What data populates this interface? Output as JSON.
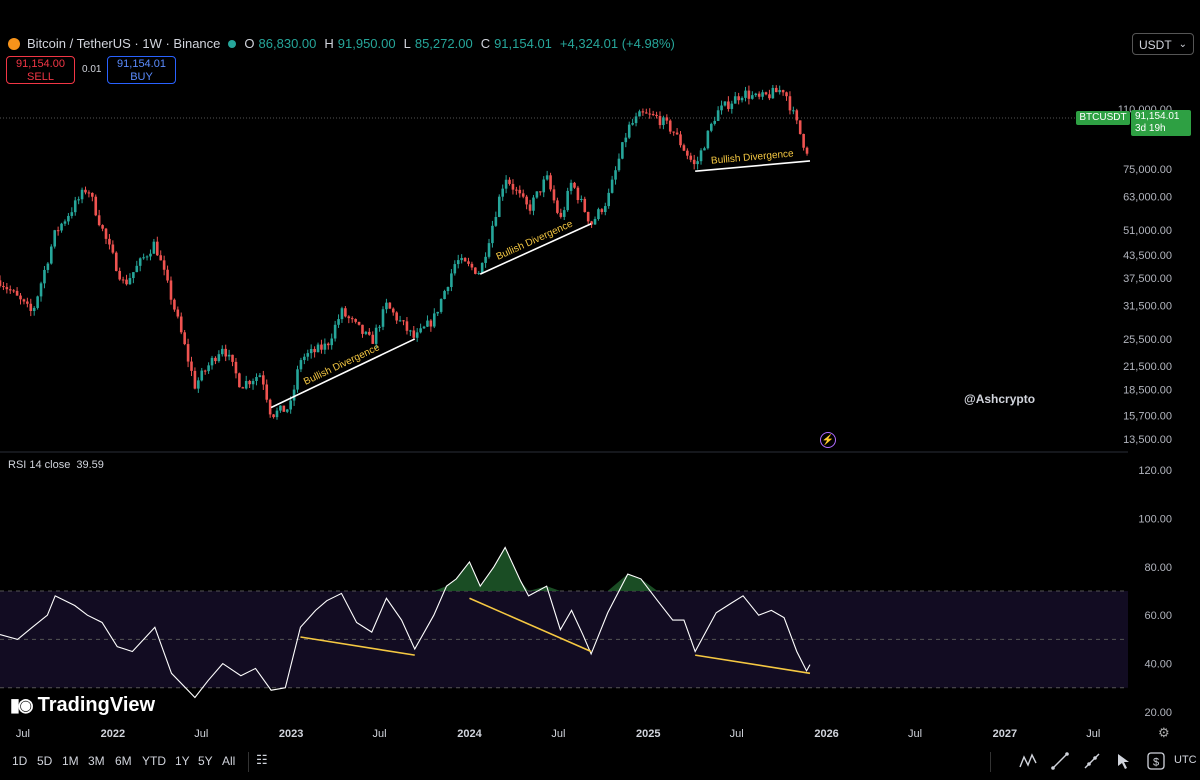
{
  "header": {
    "title": "Bitcoin / TetherUS · 1W · Binance",
    "open_label": "O",
    "open": "86,830.00",
    "high_label": "H",
    "high": "91,950.00",
    "low_label": "L",
    "low": "85,272.00",
    "close_label": "C",
    "close": "91,154.01",
    "change": "+4,324.01 (+4.98%)"
  },
  "trade": {
    "sell_price": "91,154.00",
    "sell_label": "SELL",
    "spread": "0.01",
    "buy_price": "91,154.01",
    "buy_label": "BUY"
  },
  "currency_select": "USDT",
  "price_tag": {
    "symbol": "BTCUSDT",
    "price": "91,154.01",
    "countdown": "3d 19h"
  },
  "rsi_label": {
    "name": "RSI 14 close",
    "value": "39.59"
  },
  "watermark": "@Ashcrypto",
  "brand": "TradingView",
  "timeframes": [
    "1D",
    "5D",
    "1M",
    "3M",
    "6M",
    "YTD",
    "1Y",
    "5Y",
    "All"
  ],
  "timezone": "UTC",
  "colors": {
    "up": "#26a69a",
    "down": "#ef5350",
    "accent": "#2ea043",
    "rsi_line": "#ffffff",
    "divergence": "#f5c842"
  },
  "chart_data": [
    {
      "type": "candlestick",
      "title": "Bitcoin / TetherUS · 1W · Binance",
      "scale": "log",
      "ylim": [
        13000,
        150000
      ],
      "yticks": [
        13500,
        15700,
        18500,
        21500,
        25500,
        31500,
        37500,
        43500,
        51000,
        63000,
        75000,
        110000
      ],
      "ytick_labels": [
        "13,500.00",
        "15,700.00",
        "18,500.00",
        "21,500.00",
        "25,500.00",
        "31,500.00",
        "37,500.00",
        "43,500.00",
        "51,000.00",
        "63,000.00",
        "75,000.00",
        "110,000.00"
      ],
      "xlim": [
        "2021-05-15",
        "2027-09-10"
      ],
      "xticks": [
        "2021-07-01",
        "2022-01-01",
        "2022-07-01",
        "2023-01-01",
        "2023-07-01",
        "2024-01-01",
        "2024-07-01",
        "2025-01-01",
        "2025-07-01",
        "2026-01-01",
        "2026-07-01",
        "2027-01-01",
        "2027-07-01"
      ],
      "xtick_labels": [
        "Jul",
        "2022",
        "Jul",
        "2023",
        "Jul",
        "2024",
        "Jul",
        "2025",
        "Jul",
        "2026",
        "Jul",
        "2027",
        "Jul"
      ],
      "close_path": [
        [
          "2021-05-15",
          37000
        ],
        [
          "2021-07-20",
          30000
        ],
        [
          "2021-09-05",
          50000
        ],
        [
          "2021-11-10",
          67000
        ],
        [
          "2021-12-20",
          47000
        ],
        [
          "2022-01-24",
          36000
        ],
        [
          "2022-03-28",
          47000
        ],
        [
          "2022-05-10",
          30000
        ],
        [
          "2022-06-18",
          19000
        ],
        [
          "2022-08-14",
          24500
        ],
        [
          "2022-09-20",
          19000
        ],
        [
          "2022-11-01",
          20500
        ],
        [
          "2022-11-21",
          15800
        ],
        [
          "2022-12-30",
          16500
        ],
        [
          "2023-01-20",
          22500
        ],
        [
          "2023-03-15",
          24500
        ],
        [
          "2023-04-14",
          30300
        ],
        [
          "2023-06-15",
          25000
        ],
        [
          "2023-07-15",
          31500
        ],
        [
          "2023-09-11",
          25500
        ],
        [
          "2023-10-20",
          29000
        ],
        [
          "2023-12-05",
          42000
        ],
        [
          "2024-01-23",
          39000
        ],
        [
          "2024-03-14",
          72000
        ],
        [
          "2024-05-01",
          58000
        ],
        [
          "2024-06-07",
          71000
        ],
        [
          "2024-07-05",
          54000
        ],
        [
          "2024-07-28",
          69000
        ],
        [
          "2024-09-06",
          53000
        ],
        [
          "2024-10-10",
          62000
        ],
        [
          "2024-11-20",
          97000
        ],
        [
          "2024-12-17",
          106000
        ],
        [
          "2025-01-20",
          104000
        ],
        [
          "2025-02-20",
          96000
        ],
        [
          "2025-04-07",
          76000
        ],
        [
          "2025-05-20",
          107000
        ],
        [
          "2025-07-14",
          122000
        ],
        [
          "2025-08-15",
          117000
        ],
        [
          "2025-10-06",
          125000
        ],
        [
          "2025-11-21",
          84000
        ],
        [
          "2025-11-28",
          91154
        ]
      ],
      "current_price": 91154.01,
      "annotations": [
        {
          "text": "Bullish Divergence",
          "from": [
            "2022-11-21",
            16500
          ],
          "to": [
            "2023-09-11",
            25500
          ]
        },
        {
          "text": "Bullish Divergence",
          "from": [
            "2024-01-23",
            38500
          ],
          "to": [
            "2024-09-06",
            53000
          ]
        },
        {
          "text": "Bullish Divergence",
          "from": [
            "2025-04-07",
            74000
          ],
          "to": [
            "2025-11-28",
            79000
          ]
        }
      ]
    },
    {
      "type": "line",
      "title": "RSI 14 close",
      "ylim": [
        20,
        120
      ],
      "yticks": [
        20,
        40,
        60,
        80,
        100,
        120
      ],
      "ytick_labels": [
        "20.00",
        "40.00",
        "60.00",
        "80.00",
        "100.00",
        "120.00"
      ],
      "bands": {
        "upper": 70,
        "middle": 50,
        "lower": 30
      },
      "x": [
        "2021-05-15",
        "2021-06-20",
        "2021-07-20",
        "2021-08-20",
        "2021-09-05",
        "2021-10-15",
        "2021-11-10",
        "2021-12-10",
        "2022-01-10",
        "2022-02-10",
        "2022-03-28",
        "2022-05-01",
        "2022-06-18",
        "2022-07-15",
        "2022-08-14",
        "2022-09-20",
        "2022-10-20",
        "2022-11-21",
        "2022-12-20",
        "2023-01-20",
        "2023-02-20",
        "2023-03-15",
        "2023-04-14",
        "2023-05-15",
        "2023-06-15",
        "2023-07-15",
        "2023-08-15",
        "2023-09-11",
        "2023-10-20",
        "2023-11-15",
        "2023-12-05",
        "2024-01-01",
        "2024-01-23",
        "2024-02-20",
        "2024-03-14",
        "2024-04-15",
        "2024-05-01",
        "2024-06-07",
        "2024-07-05",
        "2024-07-28",
        "2024-08-20",
        "2024-09-06",
        "2024-10-10",
        "2024-11-20",
        "2024-12-17",
        "2025-01-20",
        "2025-02-20",
        "2025-03-15",
        "2025-04-07",
        "2025-05-20",
        "2025-06-20",
        "2025-07-14",
        "2025-08-15",
        "2025-09-10",
        "2025-10-06",
        "2025-11-01",
        "2025-11-21",
        "2025-11-28"
      ],
      "values": [
        52,
        50,
        55,
        60,
        68,
        64,
        60,
        57,
        47,
        45,
        55,
        36,
        26,
        33,
        40,
        35,
        38,
        29,
        30,
        55,
        62,
        66,
        69,
        57,
        53,
        67,
        58,
        46,
        60,
        72,
        75,
        82,
        72,
        80,
        88,
        74,
        68,
        72,
        54,
        62,
        52,
        44,
        61,
        77,
        75,
        66,
        58,
        58,
        45,
        61,
        65,
        68,
        60,
        62,
        59,
        45,
        37,
        39.59
      ],
      "annotations": [
        {
          "from": [
            "2023-01-20",
            51
          ],
          "to": [
            "2023-09-11",
            43.5
          ]
        },
        {
          "from": [
            "2024-01-01",
            67
          ],
          "to": [
            "2024-09-06",
            45
          ]
        },
        {
          "from": [
            "2025-04-07",
            43.5
          ],
          "to": [
            "2025-11-28",
            36
          ]
        }
      ]
    }
  ]
}
